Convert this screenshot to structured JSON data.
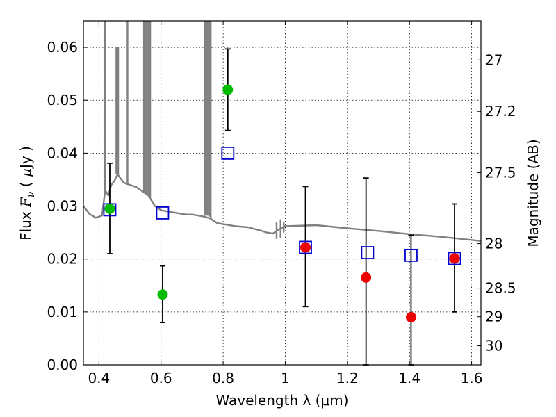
{
  "chart_data": {
    "type": "scatter",
    "xlabel": "Wavelength  λ (μm)",
    "ylabel_parts": {
      "prefix": "Flux  ",
      "var": "F",
      "sub": "ν",
      "mid": "  ( ",
      "unit_var": "μ",
      "unit": "Jy )"
    },
    "y2label": "Magnitude (AB)",
    "xlim": [
      0.35,
      1.63
    ],
    "ylim": [
      0.0,
      0.065
    ],
    "grid": true,
    "x_ticks": [
      0.4,
      0.6,
      0.8,
      1.0,
      1.2,
      1.4,
      1.6
    ],
    "x_tick_labels": [
      "0.4",
      "0.6",
      "0.8",
      "1",
      "1.2",
      "1.4",
      "1.6"
    ],
    "y_ticks": [
      0.0,
      0.01,
      0.02,
      0.03,
      0.04,
      0.05,
      0.06
    ],
    "y_tick_labels": [
      "0.00",
      "0.01",
      "0.02",
      "0.03",
      "0.04",
      "0.05",
      "0.06"
    ],
    "y2_ticks": [
      {
        "label": "27",
        "flux": 0.0576
      },
      {
        "label": "27.2",
        "flux": 0.0479
      },
      {
        "label": "27.5",
        "flux": 0.0363
      },
      {
        "label": "28",
        "flux": 0.0229
      },
      {
        "label": "28.5",
        "flux": 0.0145
      },
      {
        "label": "29",
        "flux": 0.0091
      },
      {
        "label": "30",
        "flux": 0.0036
      }
    ],
    "series": [
      {
        "name": "model_template",
        "style": "line",
        "color": "#808080",
        "x": [
          0.35,
          0.37,
          0.39,
          0.41,
          0.42,
          0.43,
          0.44,
          0.45,
          0.46,
          0.47,
          0.48,
          0.5,
          0.52,
          0.54,
          0.56,
          0.58,
          0.6,
          0.62,
          0.64,
          0.66,
          0.68,
          0.7,
          0.72,
          0.74,
          0.76,
          0.78,
          0.8,
          0.84,
          0.88,
          0.92,
          0.94,
          0.96,
          0.98,
          1.0,
          1.1,
          1.2,
          1.3,
          1.4,
          1.5,
          1.6,
          1.63
        ],
        "y": [
          0.03,
          0.0285,
          0.0278,
          0.0282,
          0.033,
          0.032,
          0.034,
          0.0348,
          0.036,
          0.0352,
          0.0344,
          0.034,
          0.0336,
          0.0328,
          0.032,
          0.03,
          0.0292,
          0.029,
          0.0288,
          0.0286,
          0.0284,
          0.0284,
          0.0282,
          0.028,
          0.0276,
          0.0268,
          0.0266,
          0.0262,
          0.026,
          0.0254,
          0.025,
          0.0248,
          0.0256,
          0.0262,
          0.0264,
          0.0258,
          0.0253,
          0.0247,
          0.0242,
          0.0236,
          0.0234
        ]
      },
      {
        "name": "template_emission_spikes",
        "style": "spikes",
        "color": "#808080",
        "x": [
          0.418,
          0.421,
          0.456,
          0.462,
          0.492,
          0.545,
          0.55,
          0.555,
          0.56,
          0.565,
          0.74,
          0.745,
          0.75,
          0.755,
          0.76,
          0.972,
          0.985,
          0.995
        ],
        "y_top": [
          0.065,
          0.065,
          0.06,
          0.06,
          0.065,
          0.065,
          0.065,
          0.065,
          0.065,
          0.065,
          0.065,
          0.065,
          0.065,
          0.065,
          0.065,
          0.027,
          0.0275,
          0.027
        ],
        "y_base": [
          0.033,
          0.033,
          0.036,
          0.036,
          0.034,
          0.0326,
          0.0322,
          0.032,
          0.0318,
          0.0316,
          0.0282,
          0.0282,
          0.0282,
          0.028,
          0.0278,
          0.0238,
          0.024,
          0.025
        ]
      },
      {
        "name": "model_photometry",
        "style": "open-square",
        "color": "#0000cc",
        "x": [
          0.435,
          0.605,
          0.815,
          1.065,
          1.265,
          1.405,
          1.545
        ],
        "y": [
          0.0293,
          0.0287,
          0.04,
          0.0222,
          0.0212,
          0.0207,
          0.0201
        ]
      },
      {
        "name": "observed_green",
        "style": "filled-circle",
        "color": "#00bb00",
        "x": [
          0.435,
          0.605,
          0.815
        ],
        "y": [
          0.0295,
          0.0133,
          0.052
        ],
        "err_low": [
          0.021,
          0.008,
          0.0443
        ],
        "err_high": [
          0.0381,
          0.0187,
          0.0597
        ]
      },
      {
        "name": "observed_red",
        "style": "filled-circle",
        "color": "#ee0000",
        "x": [
          1.065,
          1.26,
          1.405,
          1.545
        ],
        "y": [
          0.0222,
          0.0165,
          0.009,
          0.0201
        ],
        "err_low": [
          0.011,
          0.0,
          0.0,
          0.01
        ],
        "err_high": [
          0.0337,
          0.0353,
          0.0245,
          0.0304
        ]
      }
    ]
  }
}
